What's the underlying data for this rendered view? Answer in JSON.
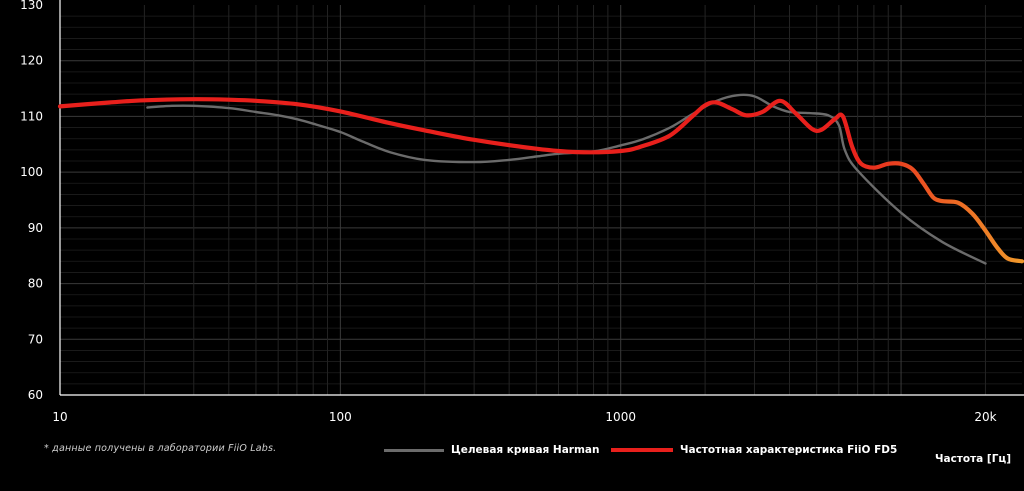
{
  "note": "* данные получены в лаборатории FiiO Labs.",
  "x_unit_label": "Частота [Гц]",
  "chart_data": {
    "type": "line",
    "xscale": "log",
    "xlim": [
      10,
      27000
    ],
    "ylim": [
      60,
      130
    ],
    "yticks": [
      60,
      70,
      80,
      90,
      100,
      110,
      120,
      130
    ],
    "xticks": [
      {
        "value": 10,
        "label": "10"
      },
      {
        "value": 100,
        "label": "100"
      },
      {
        "value": 1000,
        "label": "1000"
      },
      {
        "value": 20000,
        "label": "20k"
      }
    ],
    "grid": true,
    "legend_position": "bottom-center",
    "series": [
      {
        "name": "Целевая кривая Harman",
        "color": "#6b6b6b",
        "points": [
          [
            20.5,
            111.6
          ],
          [
            25,
            111.9
          ],
          [
            30,
            111.9
          ],
          [
            40,
            111.5
          ],
          [
            50,
            110.8
          ],
          [
            60,
            110.2
          ],
          [
            70,
            109.5
          ],
          [
            80,
            108.7
          ],
          [
            100,
            107.2
          ],
          [
            120,
            105.5
          ],
          [
            150,
            103.6
          ],
          [
            200,
            102.2
          ],
          [
            300,
            101.8
          ],
          [
            400,
            102.2
          ],
          [
            500,
            102.8
          ],
          [
            600,
            103.3
          ],
          [
            800,
            103.7
          ],
          [
            1000,
            104.8
          ],
          [
            1200,
            105.9
          ],
          [
            1500,
            108.0
          ],
          [
            1800,
            110.4
          ],
          [
            2200,
            112.8
          ],
          [
            2600,
            113.8
          ],
          [
            3000,
            113.6
          ],
          [
            3500,
            111.8
          ],
          [
            4000,
            110.8
          ],
          [
            4700,
            110.6
          ],
          [
            5500,
            110.2
          ],
          [
            6000,
            108.4
          ],
          [
            6300,
            104.0
          ],
          [
            7000,
            100.3
          ],
          [
            10000,
            92.7
          ],
          [
            14000,
            87.5
          ],
          [
            20000,
            83.6
          ]
        ]
      },
      {
        "name": "Частотная характеристика FiiO FD5",
        "color": "#e8201c",
        "color_end": "#f0982a",
        "points": [
          [
            10,
            111.8
          ],
          [
            15,
            112.5
          ],
          [
            20,
            112.9
          ],
          [
            30,
            113.1
          ],
          [
            40,
            113.0
          ],
          [
            50,
            112.8
          ],
          [
            70,
            112.2
          ],
          [
            100,
            110.9
          ],
          [
            150,
            108.8
          ],
          [
            200,
            107.5
          ],
          [
            300,
            105.8
          ],
          [
            500,
            104.2
          ],
          [
            700,
            103.6
          ],
          [
            1000,
            103.8
          ],
          [
            1200,
            104.7
          ],
          [
            1500,
            106.6
          ],
          [
            1800,
            110.0
          ],
          [
            2000,
            112.0
          ],
          [
            2200,
            112.5
          ],
          [
            2500,
            111.3
          ],
          [
            2800,
            110.2
          ],
          [
            3200,
            110.8
          ],
          [
            3700,
            112.8
          ],
          [
            4200,
            110.6
          ],
          [
            4800,
            107.8
          ],
          [
            5200,
            107.6
          ],
          [
            5800,
            109.5
          ],
          [
            6200,
            110.0
          ],
          [
            6700,
            104.5
          ],
          [
            7200,
            101.5
          ],
          [
            8000,
            100.8
          ],
          [
            9000,
            101.5
          ],
          [
            10000,
            101.5
          ],
          [
            11000,
            100.5
          ],
          [
            12000,
            98.0
          ],
          [
            13000,
            95.5
          ],
          [
            14000,
            94.8
          ],
          [
            16000,
            94.5
          ],
          [
            18000,
            92.5
          ],
          [
            20000,
            89.5
          ],
          [
            22000,
            86.5
          ],
          [
            24000,
            84.5
          ],
          [
            27000,
            84.0
          ]
        ]
      }
    ]
  }
}
